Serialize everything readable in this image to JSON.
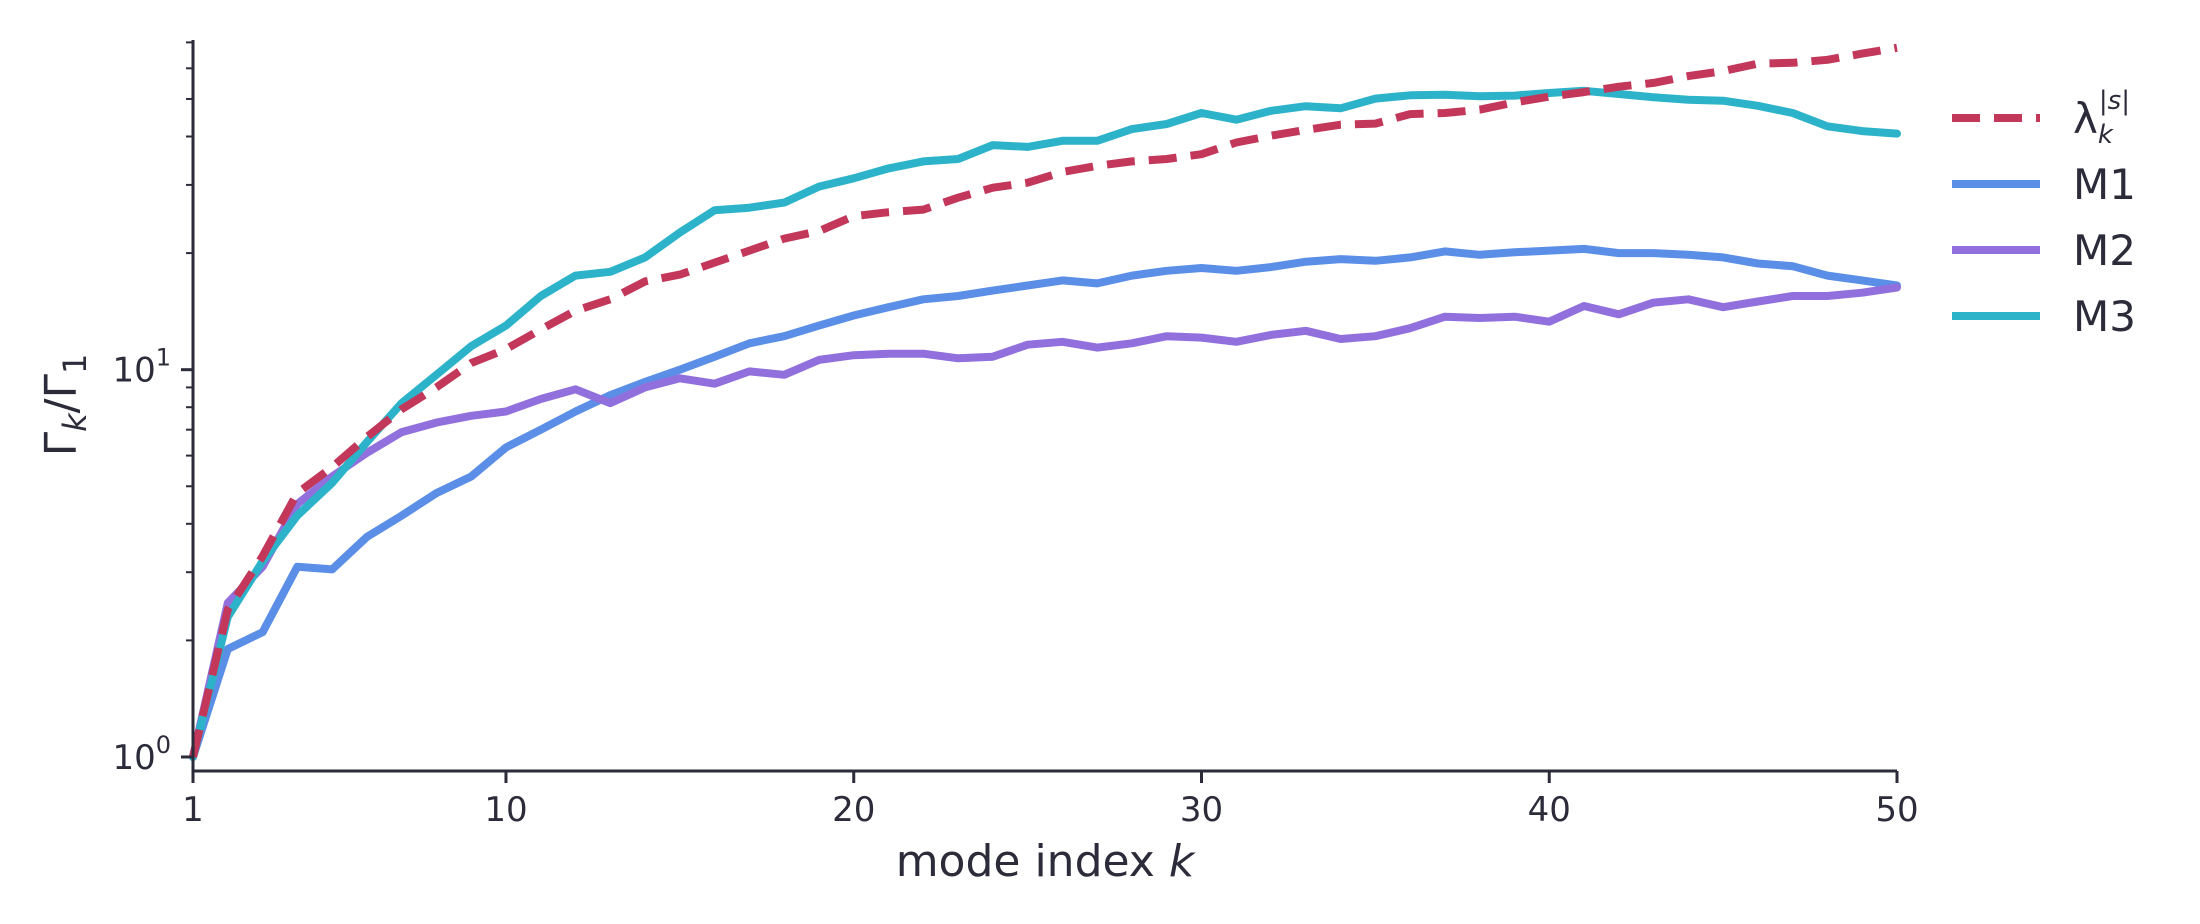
{
  "chart_data": {
    "type": "line",
    "title": "",
    "xlabel": {
      "main": "mode index ",
      "var": "k"
    },
    "ylabel": {
      "g1": "Γ",
      "s1": "k",
      "slash": "/Γ",
      "s2": "1"
    },
    "xlim": [
      1,
      50
    ],
    "ylim": [
      0.92,
      71
    ],
    "yscale": "log",
    "grid": false,
    "legend_position": "right",
    "x_ticks": [
      1,
      10,
      20,
      30,
      40,
      50
    ],
    "x_tick_labels": [
      "1",
      "10",
      "20",
      "30",
      "40",
      "50"
    ],
    "y_ticks": [
      1,
      10
    ],
    "y_tick_labels": [
      {
        "base": "10",
        "exp": "0"
      },
      {
        "base": "10",
        "exp": "1"
      }
    ],
    "x": [
      1,
      2,
      3,
      4,
      5,
      6,
      7,
      8,
      9,
      10,
      11,
      12,
      13,
      14,
      15,
      16,
      17,
      18,
      19,
      20,
      21,
      22,
      23,
      24,
      25,
      26,
      27,
      28,
      29,
      30,
      31,
      32,
      33,
      34,
      35,
      36,
      37,
      38,
      39,
      40,
      41,
      42,
      43,
      44,
      45,
      46,
      47,
      48,
      49,
      50
    ],
    "series": [
      {
        "name": "λ_k^{|s|}",
        "legend": {
          "base": "λ",
          "sub": "k",
          "sup": "|s|"
        },
        "color": "#c2375a",
        "dash": true,
        "values": [
          1.0,
          2.4,
          3.3,
          4.8,
          5.6,
          6.7,
          7.9,
          9.0,
          10.4,
          11.3,
          12.7,
          14.2,
          15.2,
          16.9,
          17.6,
          18.9,
          20.3,
          21.8,
          22.8,
          24.9,
          25.5,
          25.9,
          27.8,
          29.5,
          30.4,
          32.4,
          33.6,
          34.5,
          35.0,
          36.0,
          38.6,
          40.2,
          41.6,
          42.9,
          43.2,
          45.7,
          46.0,
          46.9,
          49.0,
          50.7,
          52.1,
          53.8,
          55.0,
          57.3,
          59.0,
          61.7,
          62.0,
          63.1,
          65.5,
          67.8
        ]
      },
      {
        "name": "M1",
        "legend": {
          "base": "M1"
        },
        "color": "#5b8ee6",
        "dash": false,
        "values": [
          1.0,
          1.9,
          2.1,
          3.1,
          3.05,
          3.7,
          4.2,
          4.8,
          5.3,
          6.3,
          7.0,
          7.8,
          8.6,
          9.3,
          10.0,
          10.8,
          11.7,
          12.2,
          13.0,
          13.8,
          14.5,
          15.2,
          15.5,
          16.0,
          16.5,
          17.0,
          16.7,
          17.5,
          18.0,
          18.3,
          18.0,
          18.4,
          19.0,
          19.3,
          19.1,
          19.5,
          20.2,
          19.8,
          20.1,
          20.3,
          20.5,
          20.0,
          20.0,
          19.8,
          19.5,
          18.8,
          18.5,
          17.5,
          17.0,
          16.5
        ]
      },
      {
        "name": "M2",
        "legend": {
          "base": "M2"
        },
        "color": "#9170dd",
        "dash": false,
        "values": [
          1.0,
          2.5,
          3.1,
          4.5,
          5.3,
          6.1,
          6.9,
          7.3,
          7.6,
          7.8,
          8.4,
          8.9,
          8.2,
          9.0,
          9.5,
          9.2,
          9.9,
          9.7,
          10.6,
          10.9,
          11.0,
          11.0,
          10.7,
          10.8,
          11.6,
          11.8,
          11.4,
          11.7,
          12.2,
          12.1,
          11.8,
          12.3,
          12.6,
          12.0,
          12.2,
          12.8,
          13.7,
          13.6,
          13.7,
          13.3,
          14.6,
          13.9,
          14.9,
          15.2,
          14.5,
          15.0,
          15.5,
          15.5,
          15.8,
          16.3
        ]
      },
      {
        "name": "M3",
        "legend": {
          "base": "M3"
        },
        "color": "#2db3c9",
        "dash": false,
        "values": [
          1.0,
          2.3,
          3.2,
          4.2,
          5.1,
          6.5,
          8.2,
          9.7,
          11.5,
          13.0,
          15.5,
          17.5,
          17.9,
          19.5,
          22.6,
          25.8,
          26.2,
          27.0,
          29.7,
          31.2,
          33.1,
          34.5,
          35.0,
          38.0,
          37.6,
          39.0,
          39.0,
          41.8,
          43.1,
          46.0,
          44.2,
          46.6,
          47.9,
          47.3,
          50.1,
          51.1,
          51.3,
          50.8,
          51.0,
          51.8,
          52.5,
          51.5,
          50.5,
          49.8,
          49.5,
          48.0,
          46.0,
          42.5,
          41.3,
          40.7
        ]
      }
    ]
  }
}
